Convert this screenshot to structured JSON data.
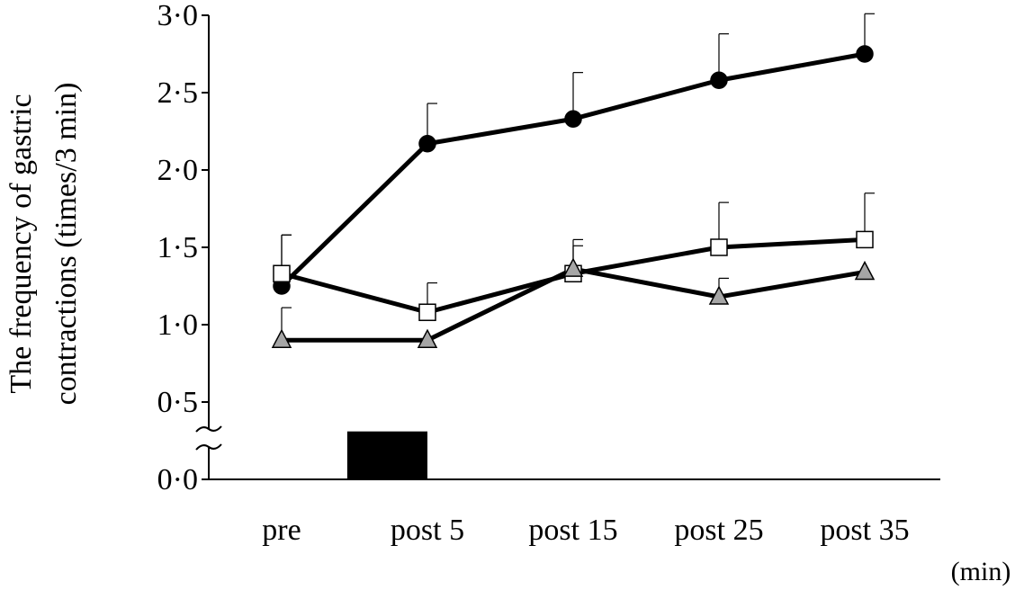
{
  "chart_data": {
    "type": "line",
    "title": "",
    "ylabel_line1": "The frequency of gastric",
    "ylabel_line2": "contractions (times/3 min)",
    "xlabel_unit": "(min)",
    "categories": [
      "pre",
      "post 5",
      "post 15",
      "post 25",
      "post 35"
    ],
    "ylim": [
      0,
      3
    ],
    "yticks": [
      {
        "value": 0,
        "label": "0·0"
      },
      {
        "value": 0.5,
        "label": "0·5"
      },
      {
        "value": 1.0,
        "label": "1·0"
      },
      {
        "value": 1.5,
        "label": "1·5"
      },
      {
        "value": 2.0,
        "label": "2·0"
      },
      {
        "value": 2.5,
        "label": "2·5"
      },
      {
        "value": 3.0,
        "label": "3·0"
      }
    ],
    "axis_break": true,
    "grid": false,
    "stimulus_bar": {
      "from_category": 0.45,
      "to_category": 1.0,
      "height": 0.31,
      "color": "#000000"
    },
    "series": [
      {
        "marker": "circle",
        "fill": "#000000",
        "values": [
          1.25,
          2.17,
          2.33,
          2.58,
          2.75
        ],
        "errors": [
          0.33,
          0.26,
          0.3,
          0.3,
          0.26
        ]
      },
      {
        "marker": "square",
        "fill": "#ffffff",
        "values": [
          1.33,
          1.08,
          1.33,
          1.5,
          1.55
        ],
        "errors": [
          0.25,
          0.19,
          0.22,
          0.29,
          0.3
        ]
      },
      {
        "marker": "triangle",
        "fill": "#a6a6a6",
        "values": [
          0.9,
          0.9,
          1.36,
          1.18,
          1.34
        ],
        "errors": [
          0.21,
          0.0,
          0.15,
          0.12,
          0.0
        ]
      }
    ]
  }
}
